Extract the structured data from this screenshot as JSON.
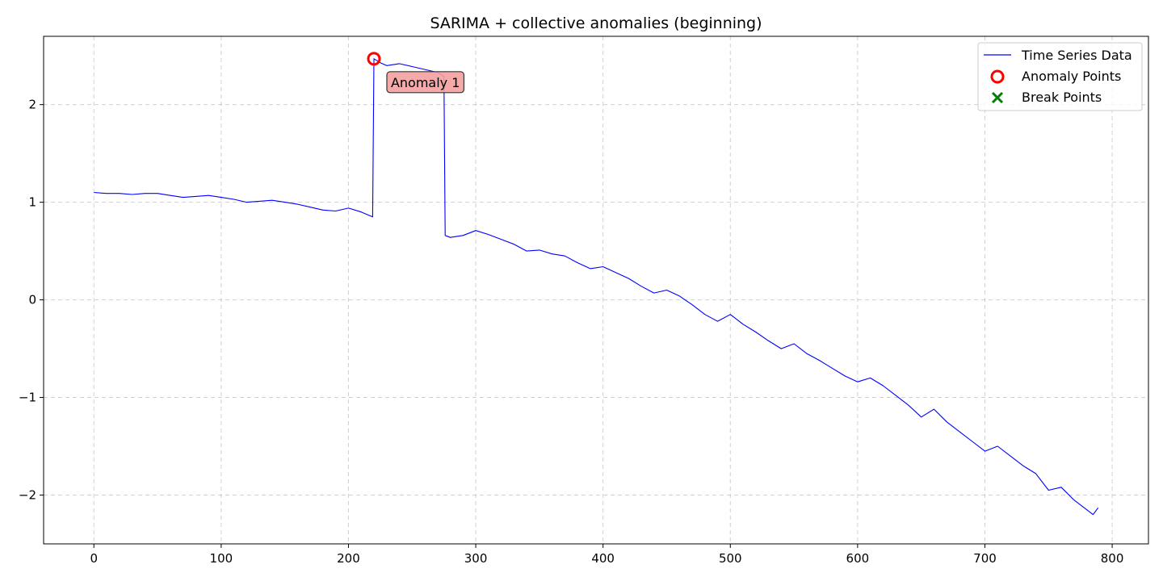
{
  "chart_data": {
    "type": "line",
    "title": "SARIMA + collective anomalies (beginning)",
    "xlabel": "",
    "ylabel": "",
    "xlim": [
      -39.5,
      828.5
    ],
    "ylim": [
      -2.5,
      2.7
    ],
    "xticks": [
      0,
      100,
      200,
      300,
      400,
      500,
      600,
      700,
      800
    ],
    "yticks": [
      -2,
      -1,
      0,
      1,
      2
    ],
    "grid": true,
    "legend_position": "top-right",
    "series": [
      {
        "name": "Time Series Data",
        "color": "#0000ff",
        "x": [
          0,
          10,
          20,
          30,
          40,
          50,
          60,
          70,
          80,
          90,
          100,
          110,
          120,
          130,
          140,
          150,
          160,
          170,
          180,
          190,
          200,
          210,
          219,
          220,
          225,
          230,
          240,
          250,
          260,
          270,
          275,
          276,
          280,
          290,
          300,
          310,
          320,
          330,
          340,
          350,
          360,
          370,
          380,
          390,
          400,
          410,
          420,
          430,
          440,
          450,
          460,
          470,
          480,
          490,
          500,
          510,
          520,
          530,
          540,
          550,
          560,
          570,
          580,
          590,
          600,
          610,
          620,
          630,
          640,
          650,
          660,
          670,
          680,
          690,
          700,
          710,
          720,
          730,
          740,
          750,
          760,
          770,
          780,
          785,
          789
        ],
        "y": [
          1.1,
          1.09,
          1.09,
          1.08,
          1.09,
          1.09,
          1.07,
          1.05,
          1.06,
          1.07,
          1.05,
          1.03,
          1.0,
          1.01,
          1.02,
          1.0,
          0.98,
          0.95,
          0.92,
          0.91,
          0.94,
          0.9,
          0.85,
          2.47,
          2.43,
          2.4,
          2.42,
          2.39,
          2.36,
          2.33,
          2.29,
          0.66,
          0.64,
          0.66,
          0.71,
          0.67,
          0.62,
          0.57,
          0.5,
          0.51,
          0.47,
          0.45,
          0.38,
          0.32,
          0.34,
          0.28,
          0.22,
          0.14,
          0.07,
          0.1,
          0.04,
          -0.05,
          -0.15,
          -0.22,
          -0.15,
          -0.25,
          -0.33,
          -0.42,
          -0.5,
          -0.45,
          -0.55,
          -0.62,
          -0.7,
          -0.78,
          -0.84,
          -0.8,
          -0.88,
          -0.98,
          -1.08,
          -1.2,
          -1.12,
          -1.25,
          -1.35,
          -1.45,
          -1.55,
          -1.5,
          -1.6,
          -1.7,
          -1.78,
          -1.95,
          -1.92,
          -2.05,
          -2.15,
          -2.2,
          -2.13
        ]
      }
    ],
    "anomaly_points": {
      "name": "Anomaly Points",
      "color": "#ff0000",
      "points": [
        {
          "x": 220,
          "y": 2.47
        }
      ]
    },
    "break_points": {
      "name": "Break Points",
      "color": "#008000",
      "points": []
    },
    "annotations": [
      {
        "text": "Anomaly 1",
        "x": 220,
        "y": 2.47,
        "bg_color": "#f4a0a0"
      }
    ]
  }
}
